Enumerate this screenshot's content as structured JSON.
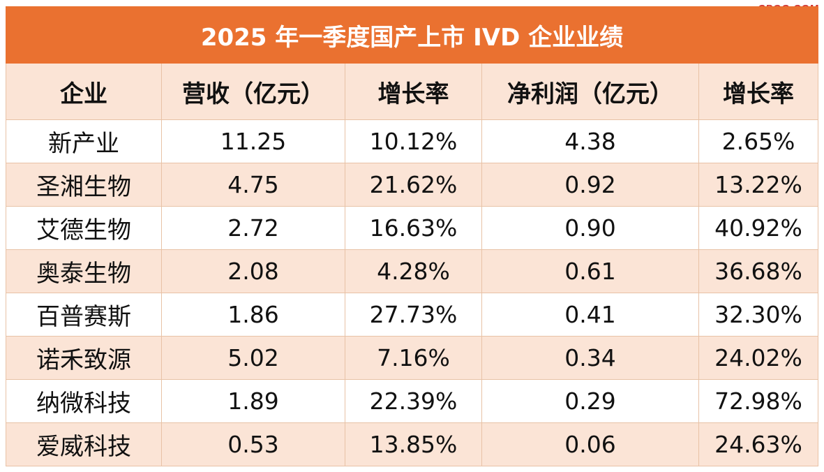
{
  "watermark": "CPQG.COM",
  "chart_data": {
    "type": "table",
    "title": "2025 年一季度国产上市 IVD 企业业绩",
    "columns": [
      "企业",
      "营收（亿元）",
      "增长率",
      "净利润（亿元）",
      "增长率"
    ],
    "rows": [
      [
        "新产业",
        "11.25",
        "10.12%",
        "4.38",
        "2.65%"
      ],
      [
        "圣湘生物",
        "4.75",
        "21.62%",
        "0.92",
        "13.22%"
      ],
      [
        "艾德生物",
        "2.72",
        "16.63%",
        "0.90",
        "40.92%"
      ],
      [
        "奥泰生物",
        "2.08",
        "4.28%",
        "0.61",
        "36.68%"
      ],
      [
        "百普赛斯",
        "1.86",
        "27.73%",
        "0.41",
        "32.30%"
      ],
      [
        "诺禾致源",
        "5.02",
        "7.16%",
        "0.34",
        "24.02%"
      ],
      [
        "纳微科技",
        "1.89",
        "22.39%",
        "0.29",
        "72.98%"
      ],
      [
        "爱威科技",
        "0.53",
        "13.85%",
        "0.06",
        "24.63%"
      ]
    ]
  },
  "colors": {
    "title_bg": "#ea7130",
    "title_text": "#ffffff",
    "band_bg": "#fbe4d6",
    "border": "#e8c2a6",
    "watermark": "#d0312d"
  }
}
